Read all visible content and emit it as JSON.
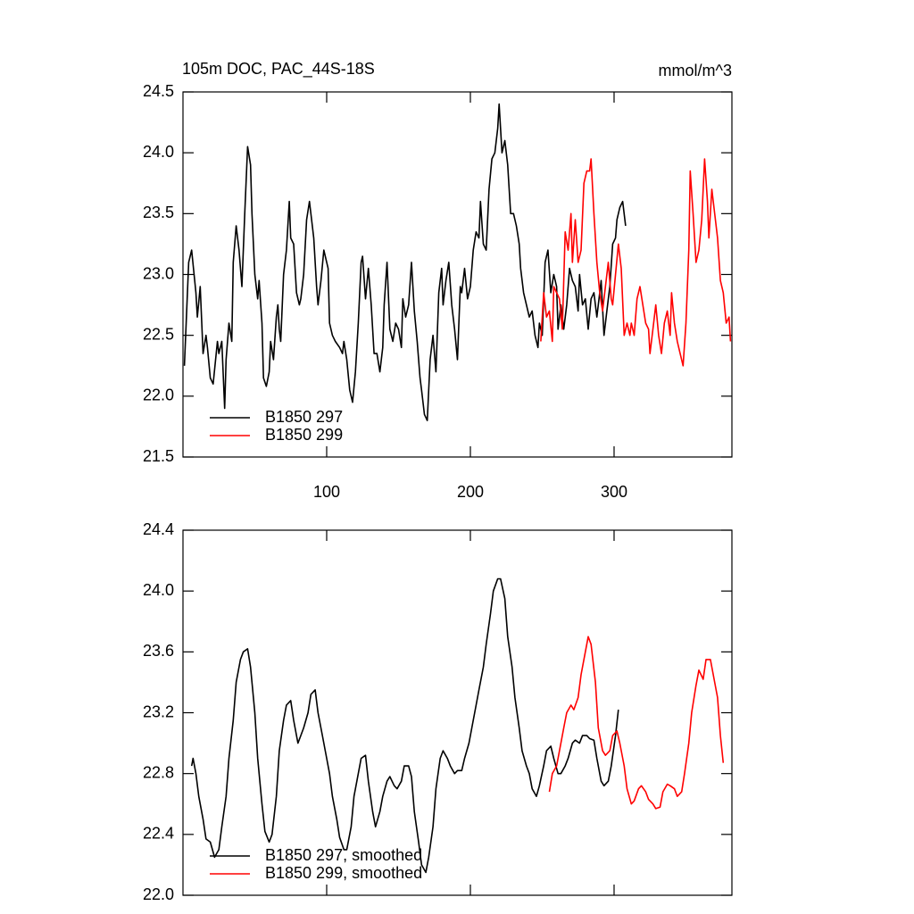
{
  "chart_data": [
    {
      "type": "line",
      "title": "105m DOC, PAC_44S-18S",
      "units": "mmol/m^3",
      "xlim": [
        0,
        382
      ],
      "xticks": [
        100,
        200,
        300
      ],
      "xtick_labels": true,
      "ylim": [
        21.5,
        24.5
      ],
      "yticks": [
        21.5,
        {
          "value": 22,
          "label": "22.0"
        },
        22.5,
        {
          "value": 23,
          "label": "23.0"
        },
        23.5,
        {
          "value": 24,
          "label": "24.0"
        },
        24.5
      ],
      "legend": "lower left",
      "series": [
        {
          "name": "B1850 297",
          "color": "#000000",
          "x": [
            1,
            4,
            6,
            9,
            10,
            12,
            14,
            16,
            17,
            19,
            21,
            24,
            25,
            27,
            29,
            30,
            32,
            34,
            35,
            37,
            39,
            41,
            43,
            45,
            47,
            48,
            50,
            52,
            53,
            55,
            56,
            58,
            60,
            61,
            63,
            65,
            66,
            67,
            68,
            70,
            72,
            74,
            75,
            77,
            79,
            81,
            82,
            84,
            86,
            88,
            89,
            91,
            93,
            94,
            96,
            98,
            101,
            102,
            104,
            106,
            109,
            111,
            112,
            114,
            116,
            118,
            120,
            122,
            124,
            125,
            127,
            129,
            131,
            133,
            135,
            137,
            139,
            140,
            142,
            144,
            146,
            148,
            150,
            152,
            153,
            155,
            157,
            159,
            161,
            163,
            165,
            166,
            168,
            170,
            172,
            174,
            176,
            178,
            180,
            181,
            183,
            185,
            187,
            189,
            191,
            193,
            194,
            196,
            198,
            200,
            202,
            204,
            206,
            207,
            209,
            211,
            213,
            215,
            217,
            219,
            220,
            222,
            224,
            226,
            228,
            230,
            232,
            234,
            235,
            237,
            239,
            241,
            243,
            245,
            247,
            248,
            250,
            252,
            254,
            256,
            258,
            260,
            261,
            263,
            265,
            267,
            269,
            271,
            273,
            275,
            276,
            278,
            280,
            282,
            284,
            286,
            288,
            289,
            291,
            293,
            295,
            297,
            299,
            301,
            302,
            304,
            306,
            308
          ],
          "values": [
            22.25,
            23.1,
            23.2,
            22.85,
            22.65,
            22.9,
            22.35,
            22.5,
            22.4,
            22.15,
            22.1,
            22.45,
            22.35,
            22.45,
            21.9,
            22.3,
            22.6,
            22.45,
            23.1,
            23.4,
            23.2,
            22.9,
            23.5,
            24.05,
            23.9,
            23.5,
            23.0,
            22.8,
            22.95,
            22.6,
            22.15,
            22.08,
            22.2,
            22.45,
            22.3,
            22.65,
            22.75,
            22.55,
            22.45,
            23.0,
            23.2,
            23.6,
            23.3,
            23.25,
            22.85,
            22.75,
            22.8,
            23.0,
            23.45,
            23.6,
            23.5,
            23.3,
            22.9,
            22.75,
            22.95,
            23.2,
            23.05,
            22.6,
            22.5,
            22.45,
            22.4,
            22.35,
            22.45,
            22.3,
            22.05,
            21.95,
            22.2,
            22.6,
            23.1,
            23.15,
            22.8,
            23.05,
            22.75,
            22.35,
            22.35,
            22.2,
            22.4,
            22.75,
            23.1,
            22.55,
            22.45,
            22.6,
            22.55,
            22.4,
            22.8,
            22.65,
            22.75,
            23.1,
            22.7,
            22.45,
            22.15,
            22.05,
            21.85,
            21.8,
            22.3,
            22.5,
            22.2,
            22.85,
            23.05,
            22.75,
            22.95,
            23.1,
            22.75,
            22.55,
            22.3,
            22.9,
            22.85,
            23.05,
            22.8,
            22.9,
            23.2,
            23.35,
            23.3,
            23.6,
            23.25,
            23.2,
            23.7,
            23.95,
            24.0,
            24.2,
            24.4,
            24.0,
            24.1,
            23.9,
            23.5,
            23.5,
            23.4,
            23.25,
            23.05,
            22.85,
            22.75,
            22.65,
            22.7,
            22.5,
            22.4,
            22.6,
            22.5,
            23.1,
            23.2,
            22.85,
            23.0,
            22.9,
            22.55,
            22.75,
            22.55,
            22.75,
            23.05,
            22.95,
            22.9,
            22.7,
            23.0,
            22.75,
            22.8,
            22.55,
            22.8,
            22.85,
            22.65,
            22.75,
            22.95,
            22.5,
            22.7,
            22.9,
            23.25,
            23.3,
            23.45,
            23.55,
            23.6,
            23.4
          ]
        },
        {
          "name": "B1850 299",
          "color": "#ff0000",
          "x": [
            249,
            251,
            253,
            255,
            257,
            258,
            260,
            262,
            264,
            266,
            268,
            270,
            271,
            273,
            275,
            277,
            279,
            281,
            283,
            284,
            286,
            288,
            290,
            292,
            294,
            296,
            298,
            299,
            301,
            303,
            305,
            307,
            309,
            311,
            312,
            314,
            316,
            318,
            320,
            322,
            324,
            325,
            327,
            329,
            331,
            333,
            335,
            337,
            339,
            340,
            342,
            344,
            346,
            348,
            350,
            352,
            353,
            355,
            357,
            359,
            361,
            363,
            365,
            366,
            368,
            370,
            372,
            374,
            376,
            378,
            380,
            381
          ],
          "values": [
            22.45,
            22.85,
            22.65,
            22.7,
            22.45,
            22.9,
            22.85,
            22.8,
            22.55,
            23.35,
            23.2,
            23.5,
            23.1,
            23.45,
            23.1,
            23.2,
            23.75,
            23.85,
            23.85,
            23.95,
            23.5,
            23.1,
            22.85,
            22.7,
            22.9,
            23.1,
            22.8,
            22.75,
            23.0,
            23.25,
            23.05,
            22.5,
            22.6,
            22.5,
            22.6,
            22.5,
            22.8,
            22.9,
            22.75,
            22.6,
            22.55,
            22.35,
            22.55,
            22.75,
            22.5,
            22.35,
            22.6,
            22.7,
            22.5,
            22.85,
            22.6,
            22.45,
            22.35,
            22.25,
            22.6,
            23.2,
            23.85,
            23.5,
            23.1,
            23.2,
            23.45,
            23.95,
            23.6,
            23.3,
            23.7,
            23.5,
            23.3,
            22.95,
            22.85,
            22.6,
            22.65,
            22.45
          ]
        }
      ]
    },
    {
      "type": "line",
      "xlim": [
        0,
        382
      ],
      "xticks": [
        100,
        200,
        300
      ],
      "xtick_labels": false,
      "ylim": [
        22,
        24.4
      ],
      "yticks": [
        {
          "value": 22,
          "label": "22.0"
        },
        22.4,
        22.8,
        23.2,
        23.6,
        {
          "value": 24,
          "label": "24.0"
        },
        24.4
      ],
      "legend": "lower left",
      "series": [
        {
          "name": "B1850 297, smoothed",
          "color": "#000000",
          "x": [
            6,
            7,
            9,
            11,
            14,
            16,
            19,
            22,
            25,
            27,
            30,
            32,
            35,
            37,
            40,
            42,
            45,
            47,
            50,
            52,
            55,
            57,
            60,
            62,
            65,
            67,
            70,
            72,
            75,
            77,
            80,
            82,
            84,
            87,
            89,
            92,
            94,
            97,
            99,
            102,
            104,
            107,
            109,
            112,
            114,
            117,
            119,
            122,
            124,
            127,
            129,
            132,
            134,
            137,
            139,
            142,
            144,
            147,
            149,
            152,
            154,
            157,
            159,
            161,
            164,
            166,
            169,
            171,
            174,
            176,
            179,
            181,
            184,
            186,
            189,
            191,
            194,
            196,
            199,
            201,
            204,
            206,
            209,
            211,
            214,
            216,
            219,
            221,
            224,
            226,
            229,
            231,
            234,
            236,
            239,
            241,
            243,
            246,
            248,
            251,
            253,
            256,
            258,
            261,
            263,
            266,
            268,
            271,
            273,
            276,
            278,
            281,
            283,
            286,
            288,
            291,
            293,
            296,
            298,
            301,
            303
          ],
          "values": [
            22.85,
            22.9,
            22.8,
            22.65,
            22.5,
            22.37,
            22.35,
            22.25,
            22.3,
            22.45,
            22.65,
            22.9,
            23.15,
            23.4,
            23.55,
            23.6,
            23.62,
            23.5,
            23.2,
            22.9,
            22.6,
            22.42,
            22.35,
            22.4,
            22.65,
            22.95,
            23.15,
            23.25,
            23.28,
            23.15,
            23.0,
            23.05,
            23.1,
            23.2,
            23.32,
            23.35,
            23.2,
            23.05,
            22.95,
            22.8,
            22.65,
            22.5,
            22.38,
            22.3,
            22.3,
            22.45,
            22.65,
            22.8,
            22.9,
            22.92,
            22.75,
            22.55,
            22.45,
            22.55,
            22.65,
            22.75,
            22.78,
            22.72,
            22.7,
            22.75,
            22.85,
            22.85,
            22.78,
            22.55,
            22.35,
            22.2,
            22.15,
            22.25,
            22.45,
            22.7,
            22.9,
            22.95,
            22.9,
            22.85,
            22.8,
            22.82,
            22.82,
            22.9,
            23.0,
            23.1,
            23.25,
            23.35,
            23.5,
            23.65,
            23.85,
            24.0,
            24.08,
            24.08,
            23.95,
            23.7,
            23.5,
            23.3,
            23.1,
            22.95,
            22.85,
            22.8,
            22.7,
            22.65,
            22.72,
            22.85,
            22.95,
            22.98,
            22.9,
            22.8,
            22.8,
            22.85,
            22.9,
            23.0,
            23.02,
            23.0,
            23.05,
            23.05,
            23.03,
            23.02,
            22.9,
            22.75,
            22.72,
            22.75,
            22.85,
            23.05,
            23.22
          ]
        },
        {
          "name": "B1850 299, smoothed",
          "color": "#ff0000",
          "x": [
            255,
            257,
            260,
            262,
            265,
            267,
            270,
            272,
            275,
            277,
            280,
            282,
            284,
            287,
            289,
            292,
            294,
            297,
            299,
            302,
            304,
            307,
            309,
            312,
            314,
            317,
            319,
            322,
            324,
            327,
            329,
            332,
            334,
            337,
            339,
            342,
            344,
            347,
            349,
            352,
            354,
            357,
            359,
            362,
            364,
            367,
            369,
            372,
            374,
            376
          ],
          "values": [
            22.68,
            22.8,
            22.85,
            22.95,
            23.1,
            23.2,
            23.25,
            23.22,
            23.3,
            23.45,
            23.6,
            23.7,
            23.65,
            23.4,
            23.1,
            22.95,
            22.92,
            22.95,
            23.05,
            23.08,
            23.0,
            22.85,
            22.7,
            22.6,
            22.62,
            22.7,
            22.72,
            22.68,
            22.63,
            22.6,
            22.57,
            22.58,
            22.68,
            22.73,
            22.72,
            22.7,
            22.65,
            22.68,
            22.8,
            23.0,
            23.2,
            23.38,
            23.48,
            23.42,
            23.55,
            23.55,
            23.45,
            23.3,
            23.05,
            22.87
          ]
        }
      ]
    }
  ]
}
